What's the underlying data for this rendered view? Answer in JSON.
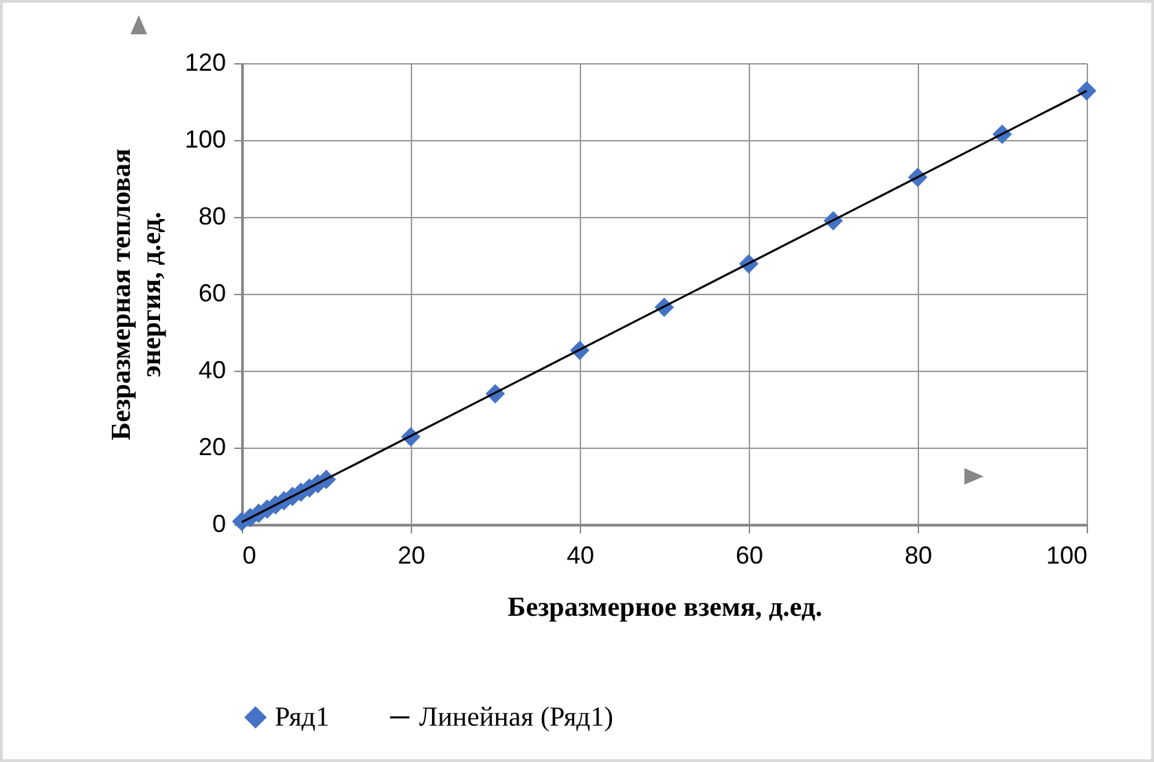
{
  "chart_data": {
    "type": "scatter",
    "xlabel": "Безразмерное вземя,  д.ед.",
    "ylabel": "Безразмерная тепловая\nэнергия, д.ед.",
    "series": [
      {
        "name": "Ряд1",
        "color": "#4472c4",
        "marker": "diamond",
        "x": [
          0,
          1,
          2,
          3,
          4,
          5,
          6,
          7,
          8,
          9,
          10,
          20,
          30,
          40,
          50,
          60,
          70,
          80,
          90,
          100
        ],
        "values": [
          0.8,
          1.8,
          2.9,
          4.0,
          5.1,
          6.2,
          7.3,
          8.4,
          9.5,
          10.6,
          11.7,
          22.8,
          34.0,
          45.3,
          56.5,
          67.8,
          79.0,
          90.3,
          101.5,
          112.8
        ]
      },
      {
        "name": "Линейная (Ряд1)",
        "type": "line",
        "color": "#000000",
        "line_style": "solid",
        "x": [
          0,
          100
        ],
        "values": [
          0.6,
          112.8
        ]
      }
    ],
    "xlim": [
      0,
      100
    ],
    "xticks": [
      0,
      20,
      40,
      60,
      80,
      100
    ],
    "ylim": [
      0,
      120
    ],
    "yticks": [
      0,
      20,
      40,
      60,
      80,
      100,
      120
    ],
    "grid": true,
    "legend": "bottom"
  }
}
